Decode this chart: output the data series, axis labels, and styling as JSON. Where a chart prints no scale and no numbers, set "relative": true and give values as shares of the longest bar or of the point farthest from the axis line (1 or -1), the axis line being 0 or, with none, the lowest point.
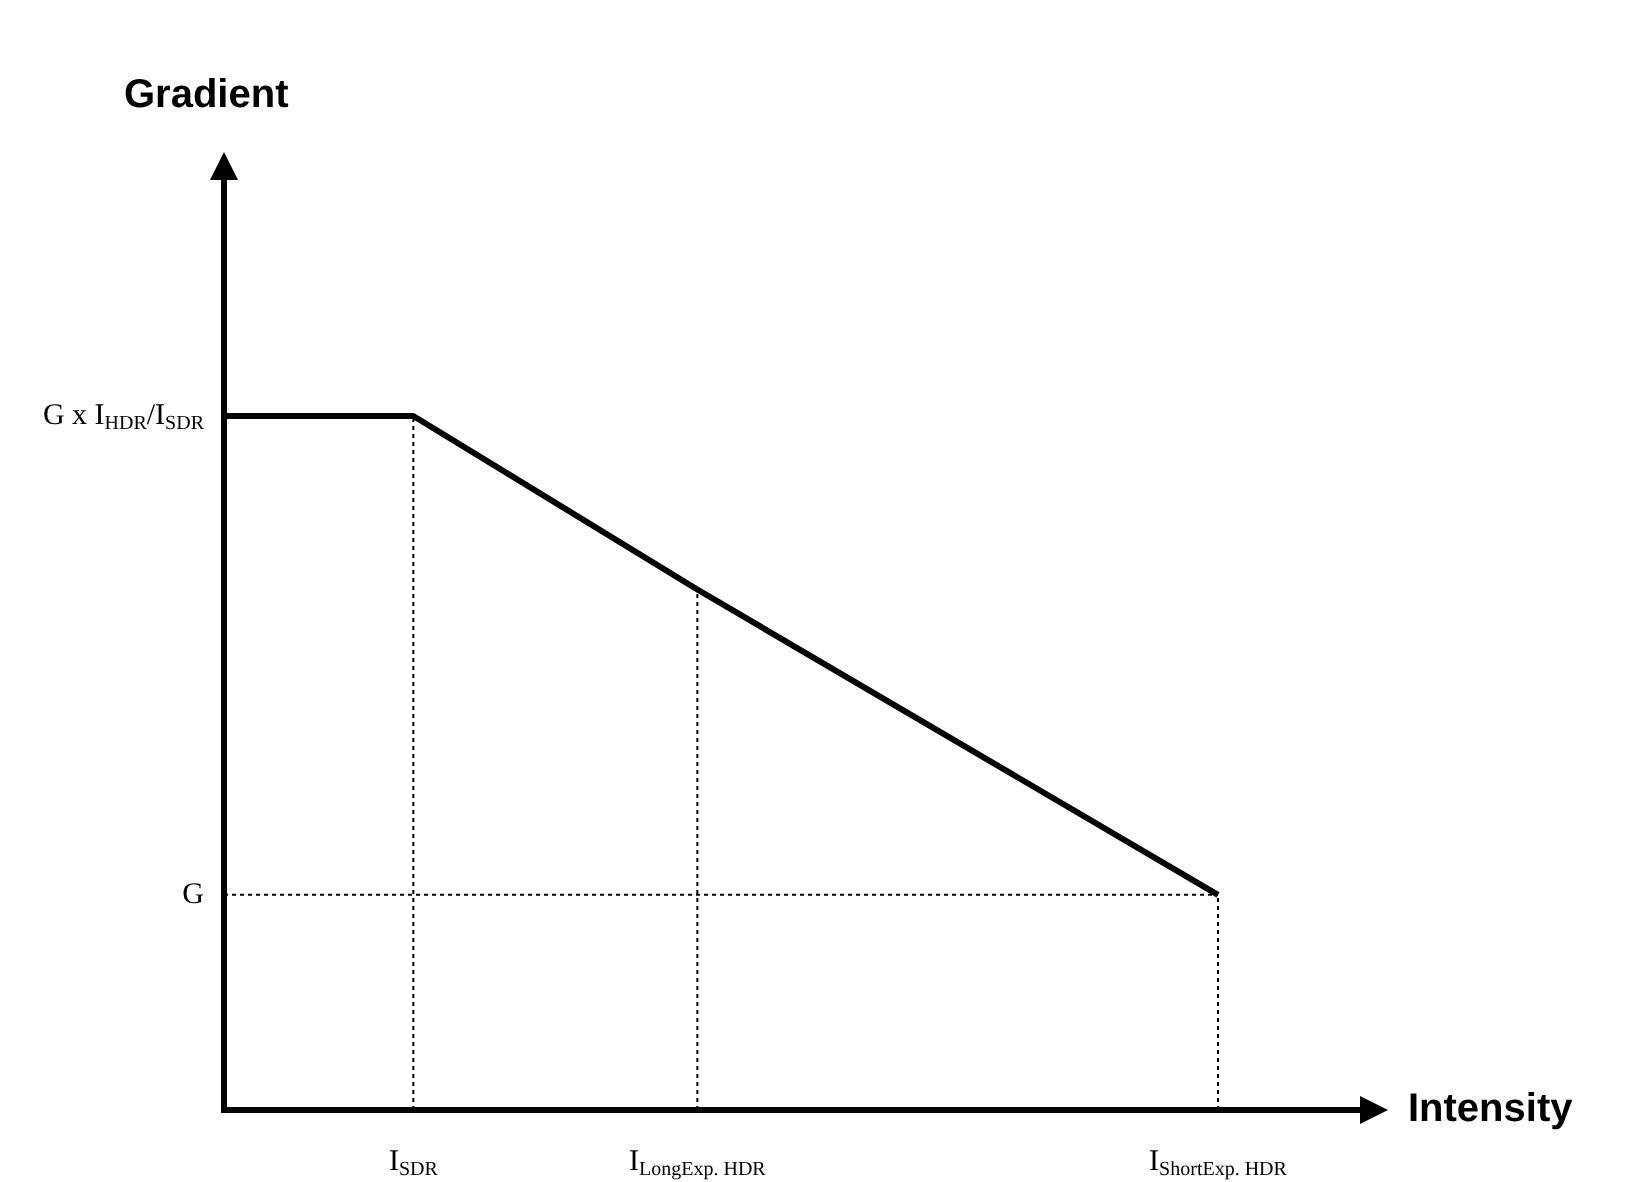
{
  "chart_data": {
    "type": "line",
    "relative": true,
    "xlabel": "Intensity",
    "categories": [
      null,
      null,
      null,
      null,
      "I$_{SDR}$",
      null,
      null,
      null,
      null,
      null,
      "I$_{LongExp. HDR}$",
      null,
      null,
      null,
      null,
      null,
      null,
      null,
      null,
      null,
      null,
      "I$_{ShortExp. HDR}$",
      null,
      null,
      null
    ],
    "series": [
      {
        "color": "#000000",
        "values": [
          1,
          null,
          null,
          null,
          1,
          null,
          null,
          null,
          null,
          null,
          0.75,
          null,
          null,
          null,
          null,
          null,
          null,
          null,
          null,
          null,
          null,
          0.31,
          null,
          null,
          null
        ]
      }
    ],
    "ref_lines": [
      {
        "axis": "x",
        "value": "I$_{SDR}$",
        "line_style": "dotted"
      },
      {
        "axis": "x",
        "value": "I$_{LongExp. HDR}$",
        "line_style": "dotted"
      },
      {
        "axis": "x",
        "value": "I$_{ShortExp. HDR}$",
        "line_style": "dotted"
      },
      {
        "axis": "y",
        "value": 0.31,
        "label": "G",
        "line_style": "dotted"
      }
    ],
    "annotations": [
      "G x I$_{HDR}$/I$_{SDR}$",
      "Gradient"
    ],
    "grid": false,
    "legend": false,
    "marker": "none",
    "line_style": "solid"
  }
}
